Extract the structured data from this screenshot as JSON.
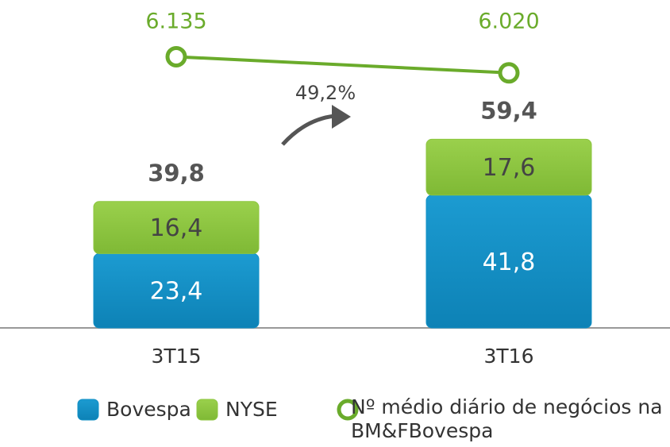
{
  "chart_data": {
    "type": "bar",
    "stacked": true,
    "categories": [
      "3T15",
      "3T16"
    ],
    "series": [
      {
        "name": "Bovespa",
        "color": "#1290c6",
        "values": [
          23.4,
          41.8
        ],
        "value_labels": [
          "23,4",
          "41,8"
        ]
      },
      {
        "name": "NYSE",
        "color": "#8cc63f",
        "values": [
          16.4,
          17.6
        ],
        "value_labels": [
          "16,4",
          "17,6"
        ]
      },
      {
        "name": "Nº médio diário de negócios na BM&FBovespa",
        "type": "line",
        "axis": "y2",
        "color": "#6aab2b",
        "values": [
          6135,
          6020
        ],
        "value_labels": [
          "6.135",
          "6.020"
        ]
      }
    ],
    "totals": [
      39.8,
      59.4
    ],
    "total_labels": [
      "39,8",
      "59,4"
    ],
    "annotation": "49,2%",
    "ylim": [
      0,
      80
    ],
    "y2lim": [
      4200,
      6200
    ]
  }
}
